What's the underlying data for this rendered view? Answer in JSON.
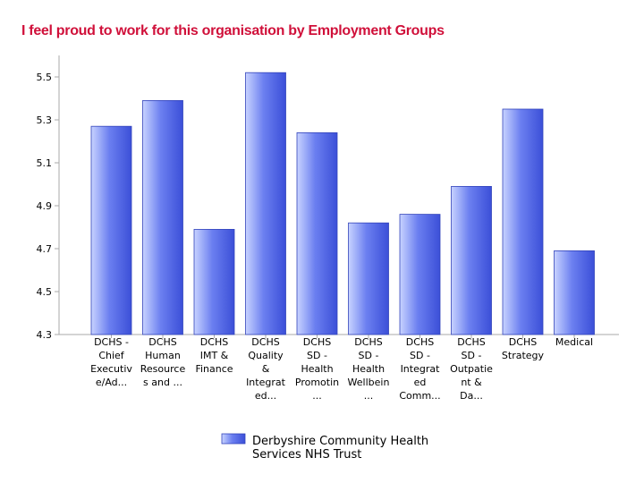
{
  "colors": {
    "title": "#d0103a",
    "bar_light": "#c8d3ff",
    "bar_mid": "#6b7ff0",
    "bar_dark": "#3b4fd8",
    "bar_border": "#3344bb",
    "axis": "#aaaaaa",
    "grid": "#e2e2e2"
  },
  "chart_data": {
    "type": "bar",
    "title": "I feel proud to work for this organisation by Employment Groups",
    "categories": [
      [
        "DCHS -",
        "Chief",
        "Executiv",
        "e/Ad..."
      ],
      [
        "DCHS",
        "Human",
        "Resource",
        "s and ..."
      ],
      [
        "DCHS",
        "IMT &",
        "Finance"
      ],
      [
        "DCHS",
        "Quality",
        "&",
        "Integrat",
        "ed..."
      ],
      [
        "DCHS",
        "SD -",
        "Health",
        "Promotin",
        "..."
      ],
      [
        "DCHS",
        "SD -",
        "Health",
        "Wellbein",
        "..."
      ],
      [
        "DCHS",
        "SD -",
        "Integrat",
        "ed",
        "Comm..."
      ],
      [
        "DCHS",
        "SD -",
        "Outpatie",
        "nt &",
        "Da..."
      ],
      [
        "DCHS",
        "Strategy"
      ],
      [
        "Medical"
      ]
    ],
    "series": [
      {
        "name": "Derbyshire Community Health Services NHS Trust",
        "name_lines": [
          "Derbyshire Community Health",
          "Services NHS Trust"
        ],
        "values": [
          5.27,
          5.39,
          4.79,
          5.52,
          5.24,
          4.82,
          4.86,
          4.99,
          5.35,
          4.69
        ]
      }
    ],
    "ylim": [
      4.3,
      5.6
    ],
    "yticks": [
      "4.3",
      "4.5",
      "4.7",
      "4.9",
      "5.1",
      "5.3",
      "5.5"
    ],
    "legend_position": "bottom-center",
    "grid": false
  }
}
